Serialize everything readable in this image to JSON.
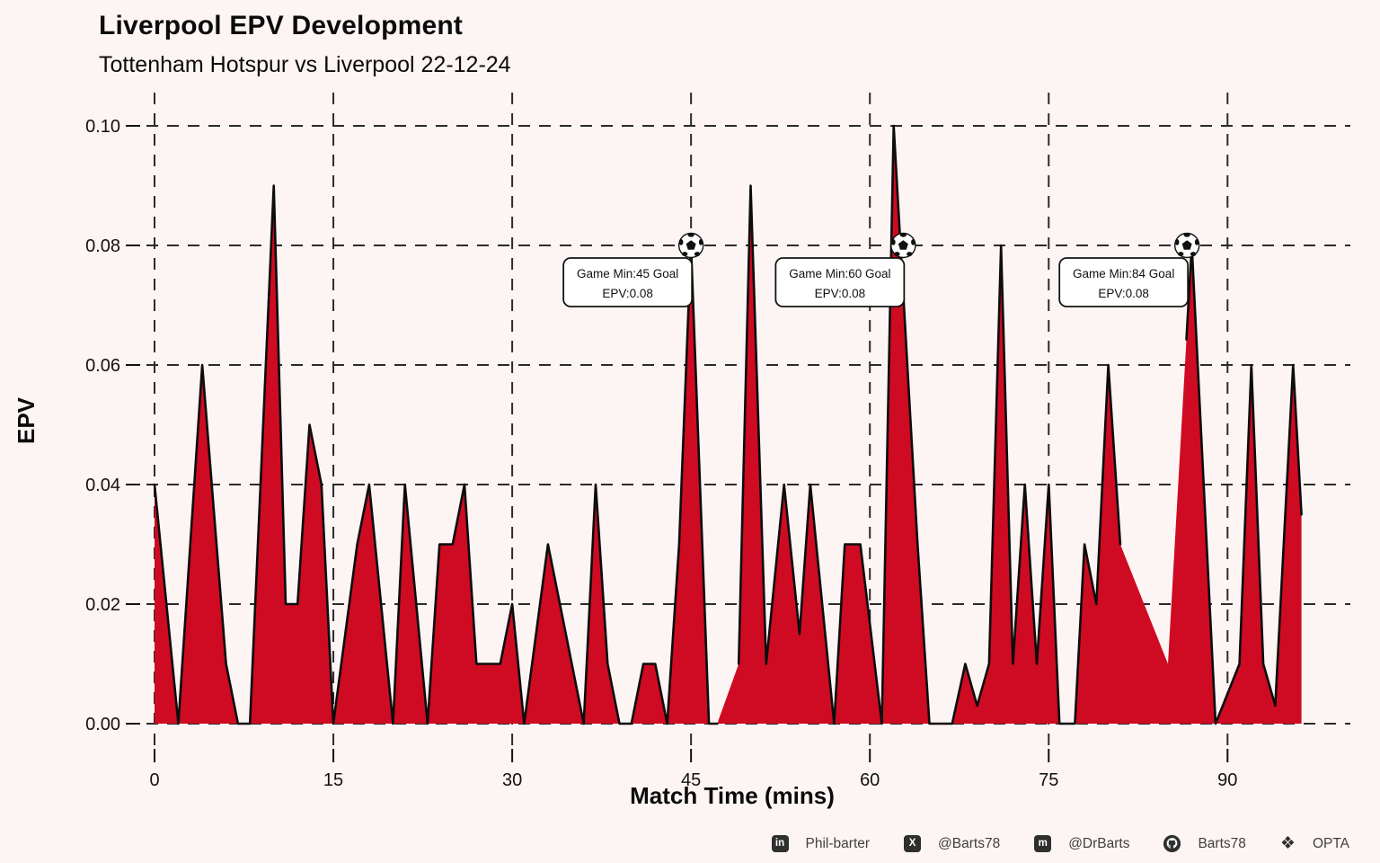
{
  "header": {
    "title": "Liverpool EPV Development",
    "subtitle": "Tottenham Hotspur vs Liverpool 22-12-24"
  },
  "chart_data": {
    "type": "area",
    "title": "Liverpool EPV Development",
    "subtitle": "Tottenham Hotspur vs Liverpool 22-12-24",
    "xlabel": "Match Time (mins)",
    "ylabel": "EPV",
    "xlim": [
      0,
      96.2
    ],
    "ylim": [
      0,
      0.1
    ],
    "x_ticks": [
      "0",
      "15",
      "30",
      "45",
      "60",
      "75",
      "90"
    ],
    "y_ticks": [
      "0.00",
      "0.02",
      "0.04",
      "0.06",
      "0.08",
      "0.10"
    ],
    "grid": "dashed-both-axes",
    "legend": "none",
    "series": [
      {
        "name": "Liverpool EPV",
        "points": [
          [
            0,
            0.04
          ],
          [
            2,
            0
          ],
          [
            4,
            0.06
          ],
          [
            6,
            0.01
          ],
          [
            7,
            0
          ],
          [
            8,
            0
          ],
          [
            10,
            0.09
          ],
          [
            11,
            0.02
          ],
          [
            12,
            0.02
          ],
          [
            13,
            0.05
          ],
          [
            14,
            0.04
          ],
          [
            15,
            0
          ],
          [
            17,
            0.03
          ],
          [
            18,
            0.04
          ],
          [
            20,
            0
          ],
          [
            21,
            0.04
          ],
          [
            22.9,
            0
          ],
          [
            23.9,
            0.03
          ],
          [
            25,
            0.03
          ],
          [
            26,
            0.04
          ],
          [
            27,
            0.01
          ],
          [
            29,
            0.01
          ],
          [
            30,
            0.02
          ],
          [
            31,
            0
          ],
          [
            33,
            0.03
          ],
          [
            34,
            0.02
          ],
          [
            36,
            0
          ],
          [
            37,
            0.04
          ],
          [
            38,
            0.01
          ],
          [
            39,
            0
          ],
          [
            40,
            0
          ],
          [
            41,
            0.01
          ],
          [
            42,
            0.01
          ],
          [
            43,
            0
          ],
          [
            44,
            0.03
          ],
          [
            45,
            0.08
          ],
          [
            46.5,
            0
          ],
          [
            47.2,
            0
          ],
          [
            49,
            0.01
          ],
          [
            50,
            0.09
          ],
          [
            51.3,
            0.01
          ],
          [
            52.8,
            0.04
          ],
          [
            54.1,
            0.015
          ],
          [
            55,
            0.04
          ],
          [
            57,
            0
          ],
          [
            57.9,
            0.03
          ],
          [
            59.2,
            0.03
          ],
          [
            61,
            0
          ],
          [
            62,
            0.1
          ],
          [
            64,
            0.03
          ],
          [
            65,
            0
          ],
          [
            66.9,
            0
          ],
          [
            68,
            0.01
          ],
          [
            69,
            0.003
          ],
          [
            70,
            0.01
          ],
          [
            71,
            0.08
          ],
          [
            72,
            0.01
          ],
          [
            73,
            0.04
          ],
          [
            74,
            0.01
          ],
          [
            75,
            0.04
          ],
          [
            75.9,
            0
          ],
          [
            77.2,
            0
          ],
          [
            78,
            0.03
          ],
          [
            79,
            0.02
          ],
          [
            80,
            0.06
          ],
          [
            81,
            0.03
          ],
          [
            85,
            0.01
          ],
          [
            87,
            0.08
          ],
          [
            89,
            0
          ],
          [
            91,
            0.01
          ],
          [
            92,
            0.06
          ],
          [
            93,
            0.01
          ],
          [
            94,
            0.003
          ],
          [
            95.5,
            0.06
          ],
          [
            96.2,
            0.035
          ]
        ]
      }
    ],
    "line_segments": [
      {
        "from": 0,
        "to": 47.2
      },
      {
        "from": 49,
        "to": 81
      },
      {
        "from": 86.55,
        "to": 96.2
      }
    ],
    "goals": [
      {
        "minute": 45,
        "epv": 0.08,
        "label_line1": "Game Min:45 Goal",
        "label_line2": "EPV:0.08",
        "marker": "soccer-ball",
        "marker_min": 45,
        "marker_epv": 0.08
      },
      {
        "minute": 60,
        "epv": 0.08,
        "label_line1": "Game Min:60 Goal",
        "label_line2": "EPV:0.08",
        "marker": "soccer-ball",
        "marker_min": 62.8,
        "marker_epv": 0.08
      },
      {
        "minute": 84,
        "epv": 0.08,
        "label_line1": "Game Min:84 Goal",
        "label_line2": "EPV:0.08",
        "marker": "soccer-ball",
        "marker_min": 86.6,
        "marker_epv": 0.08
      }
    ],
    "colors": {
      "area_fill": "#CE0B22",
      "line": "#0d0d0d",
      "background": "#FDF5F4",
      "grid": "#2b2b2b",
      "annotation_box_fill": "#ffffff",
      "annotation_box_border": "#141414"
    }
  },
  "footer": {
    "items": [
      {
        "icon": "linkedin-icon",
        "label": "Phil-barter"
      },
      {
        "icon": "x-icon",
        "label": "@Barts78"
      },
      {
        "icon": "mastodon-icon",
        "label": "@DrBarts"
      },
      {
        "icon": "github-icon",
        "label": "Barts78"
      },
      {
        "icon": "dropbox-icon",
        "label": "OPTA"
      }
    ]
  }
}
